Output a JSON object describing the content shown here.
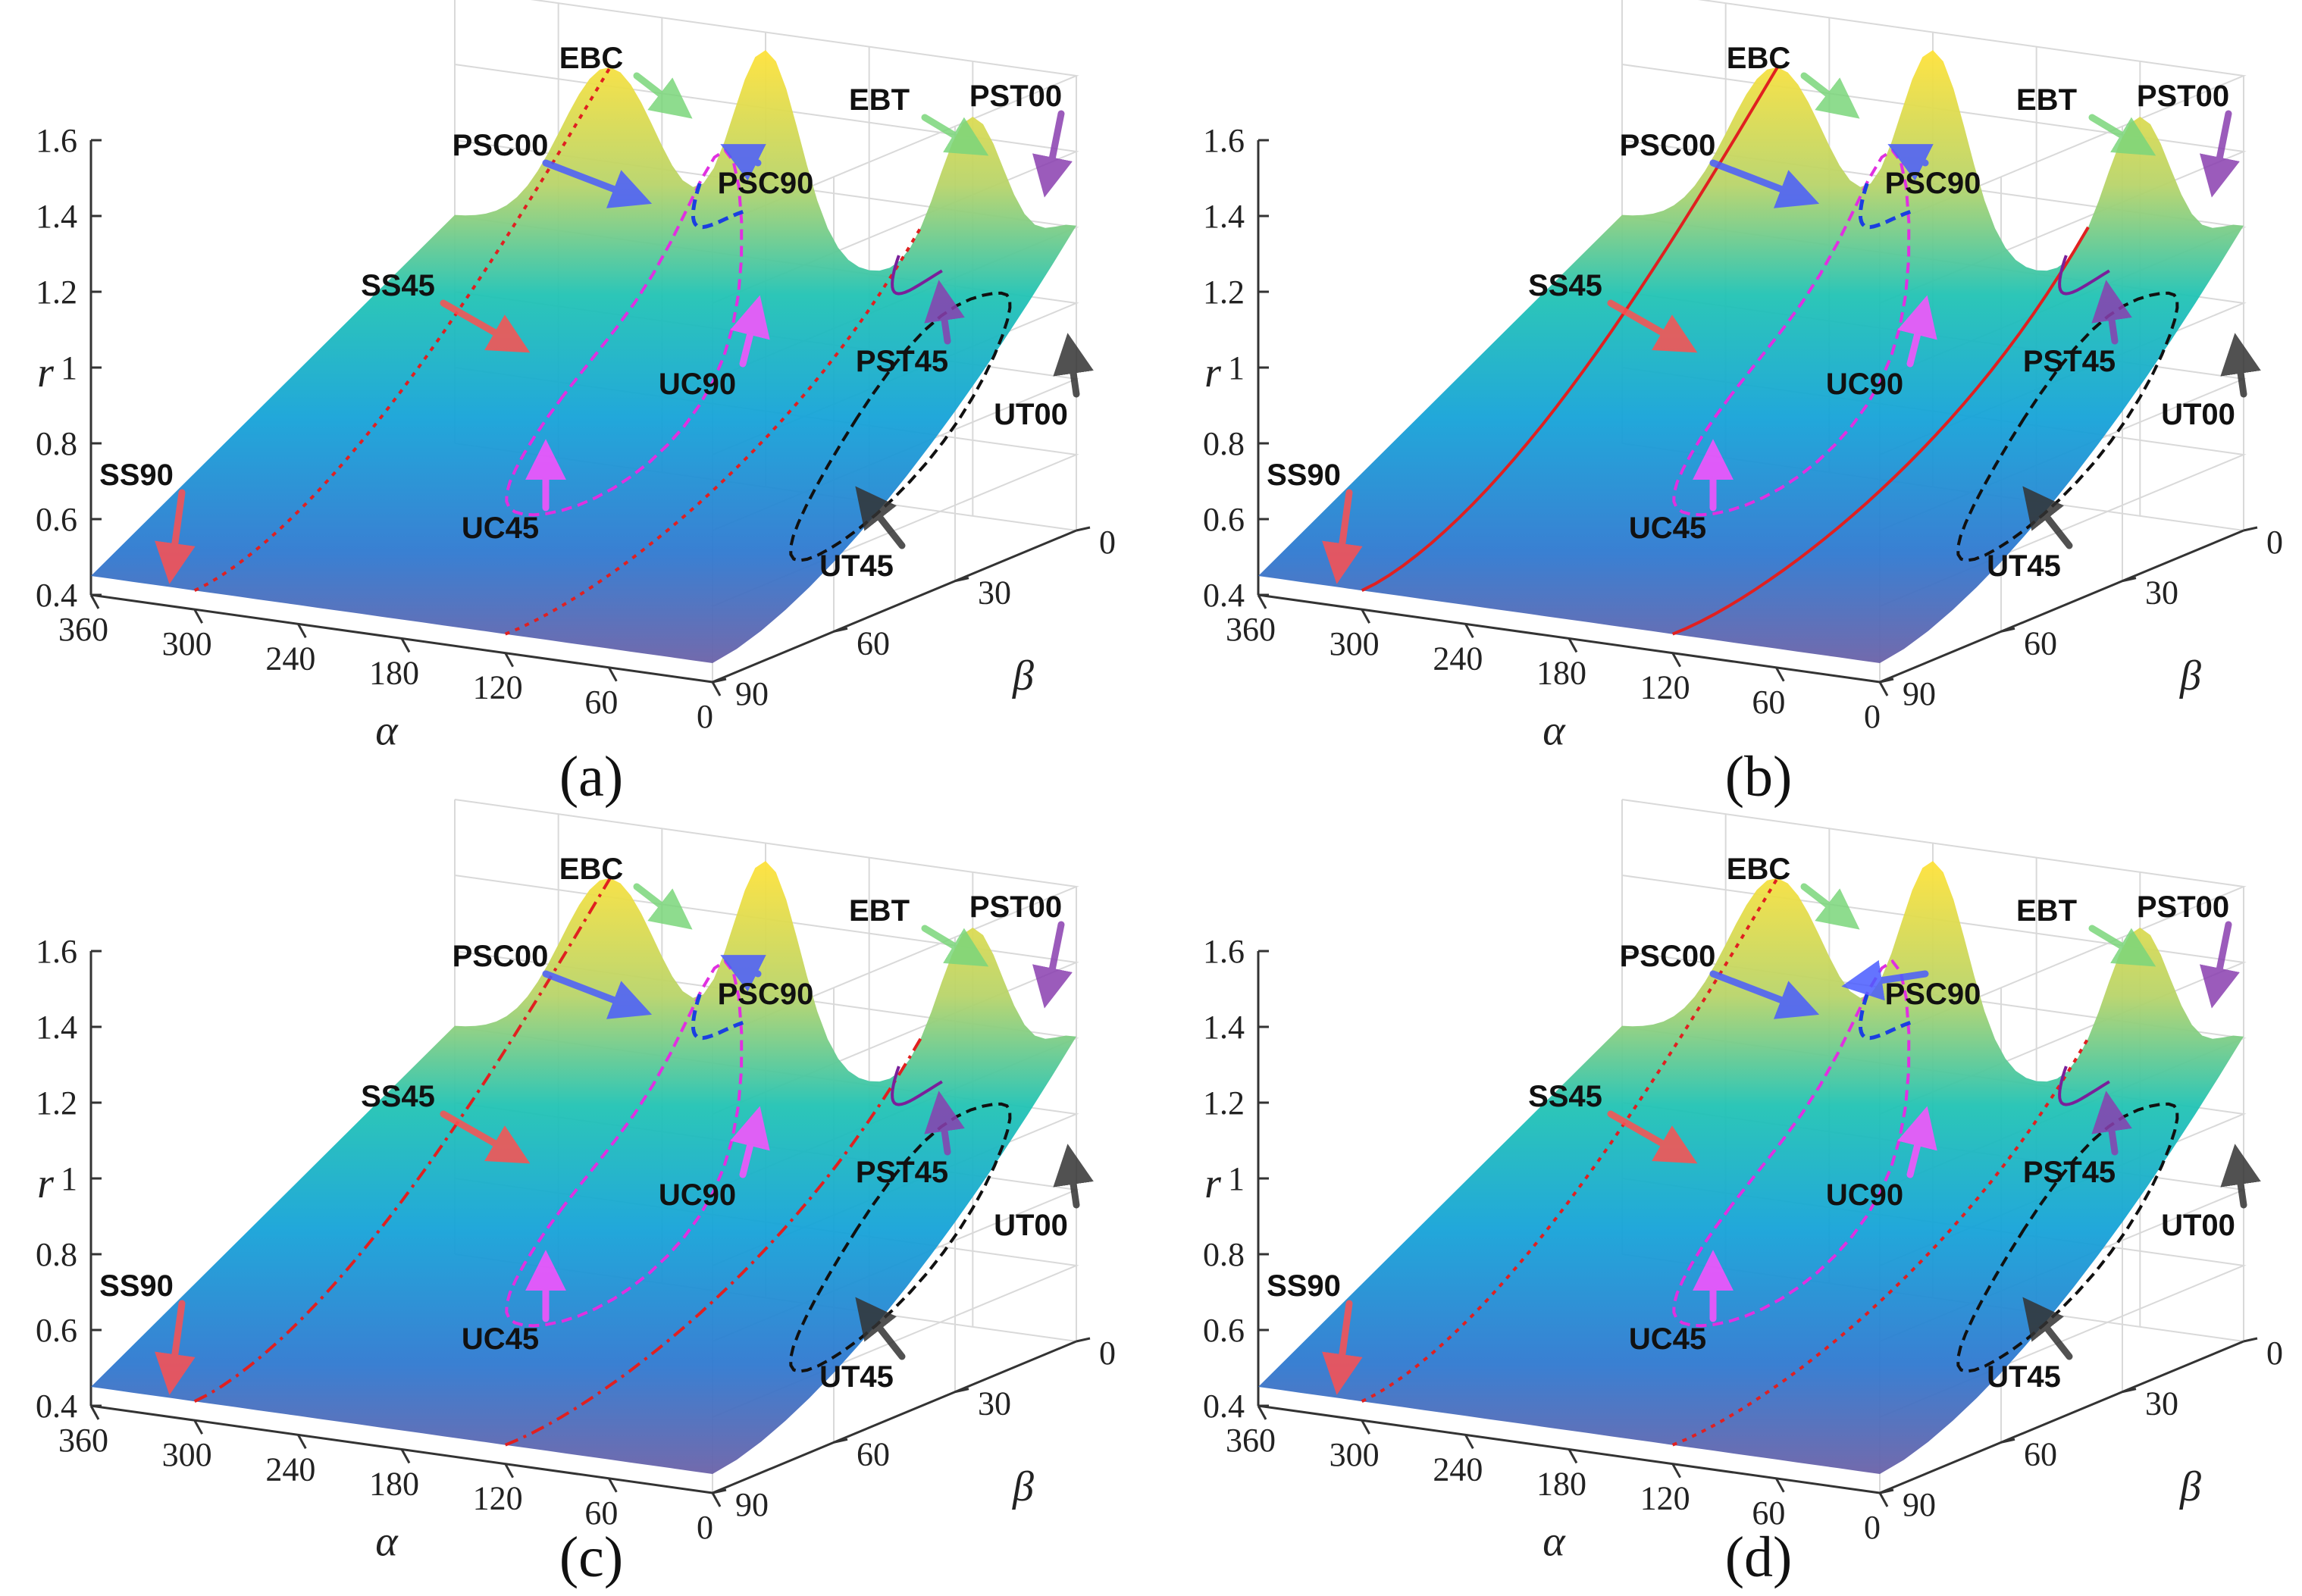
{
  "figure": {
    "captions": [
      "(a)",
      "(b)",
      "(c)",
      "(d)"
    ]
  },
  "chart_data": [
    {
      "type": "surface",
      "panel": "(a)",
      "xlabel": "α",
      "ylabel": "β",
      "zlabel": "r",
      "x_ticks": [
        "360",
        "300",
        "240",
        "180",
        "120",
        "60",
        "0"
      ],
      "y_ticks": [
        "0",
        "30",
        "60",
        "90"
      ],
      "z_ticks": [
        "0.4",
        "0.6",
        "0.8",
        "1",
        "1.2",
        "1.4",
        "1.6"
      ],
      "xlim": [
        0,
        360
      ],
      "ylim": [
        0,
        90
      ],
      "zlim": [
        0.4,
        1.6
      ],
      "annotations": [
        "EBC",
        "EBT",
        "PST00",
        "PSC00",
        "PSC90",
        "SS45",
        "UC90",
        "PST45",
        "UT00",
        "SS90",
        "UC45",
        "UT45"
      ],
      "ss_style": "dotted",
      "psc90_separate": false
    },
    {
      "type": "surface",
      "panel": "(b)",
      "xlabel": "α",
      "ylabel": "β",
      "zlabel": "r",
      "x_ticks": [
        "360",
        "300",
        "240",
        "180",
        "120",
        "60",
        "0"
      ],
      "y_ticks": [
        "0",
        "30",
        "60",
        "90"
      ],
      "z_ticks": [
        "0.4",
        "0.6",
        "0.8",
        "1",
        "1.2",
        "1.4",
        "1.6"
      ],
      "xlim": [
        0,
        360
      ],
      "ylim": [
        0,
        90
      ],
      "zlim": [
        0.4,
        1.6
      ],
      "annotations": [
        "EBC",
        "EBT",
        "PST00",
        "PSC00",
        "PSC90",
        "SS45",
        "UC90",
        "PST45",
        "UT00",
        "SS90",
        "UC45",
        "UT45"
      ],
      "ss_style": "solid",
      "psc90_separate": false
    },
    {
      "type": "surface",
      "panel": "(c)",
      "xlabel": "α",
      "ylabel": "β",
      "zlabel": "r",
      "x_ticks": [
        "360",
        "300",
        "240",
        "180",
        "120",
        "60",
        "0"
      ],
      "y_ticks": [
        "0",
        "30",
        "60",
        "90"
      ],
      "z_ticks": [
        "0.4",
        "0.6",
        "0.8",
        "1",
        "1.2",
        "1.4",
        "1.6"
      ],
      "xlim": [
        0,
        360
      ],
      "ylim": [
        0,
        90
      ],
      "zlim": [
        0.4,
        1.6
      ],
      "annotations": [
        "EBC",
        "EBT",
        "PST00",
        "PSC00",
        "PSC90",
        "SS45",
        "UC90",
        "PST45",
        "UT00",
        "SS90",
        "UC45",
        "UT45"
      ],
      "ss_style": "dashdot",
      "psc90_separate": false
    },
    {
      "type": "surface",
      "panel": "(d)",
      "xlabel": "α",
      "ylabel": "β",
      "zlabel": "r",
      "x_ticks": [
        "360",
        "300",
        "240",
        "180",
        "120",
        "60",
        "0"
      ],
      "y_ticks": [
        "0",
        "30",
        "60",
        "90"
      ],
      "z_ticks": [
        "0.4",
        "0.6",
        "0.8",
        "1",
        "1.2",
        "1.4",
        "1.6"
      ],
      "xlim": [
        0,
        360
      ],
      "ylim": [
        0,
        90
      ],
      "zlim": [
        0.4,
        1.6
      ],
      "annotations": [
        "EBC",
        "EBT",
        "PST00",
        "PSC00",
        "PSC90",
        "SS45",
        "UC90",
        "PST45",
        "UT00",
        "SS90",
        "UC45",
        "UT45"
      ],
      "ss_style": "dotted",
      "psc90_separate": true
    }
  ]
}
